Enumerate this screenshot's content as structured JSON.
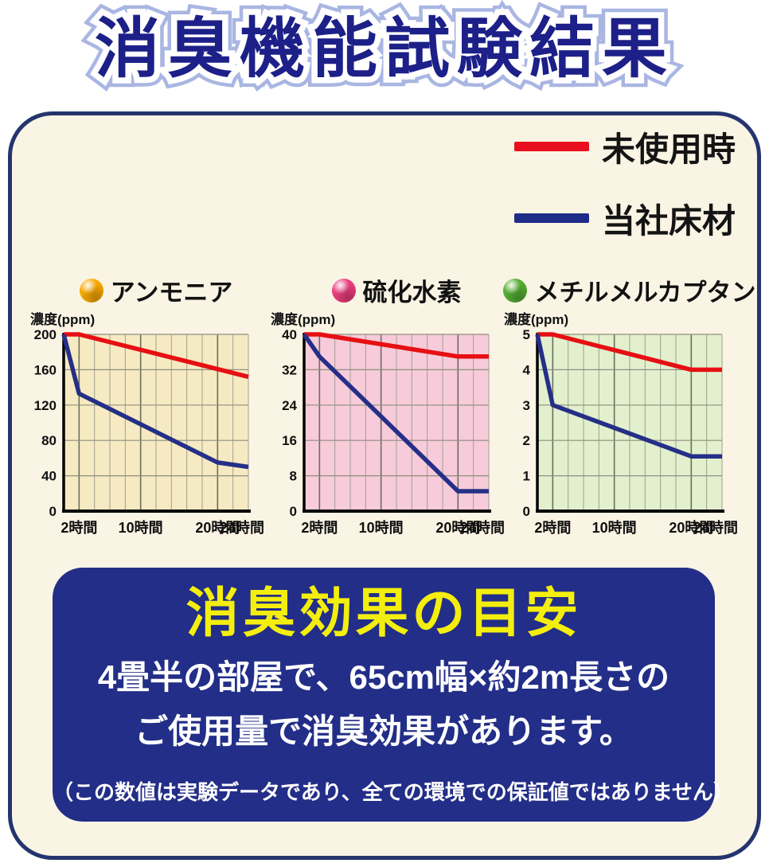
{
  "page": {
    "title": "消臭機能試験結果"
  },
  "legend": {
    "items": [
      {
        "label": "未使用時",
        "color": "#e8101e"
      },
      {
        "label": "当社床材",
        "color": "#1f2c87"
      }
    ]
  },
  "chart_data": [
    {
      "type": "line",
      "title": "アンモニア",
      "dot_color": "#f7a800",
      "bg_color": "#f6eac2",
      "ylabel": "濃度(ppm)",
      "ylim": [
        0,
        200
      ],
      "yticks": [
        0,
        40,
        80,
        120,
        160,
        200
      ],
      "xlim": [
        0,
        24
      ],
      "grid_step_hours": 2,
      "major_hours": [
        2,
        10,
        20
      ],
      "xticks": [
        {
          "h": 2,
          "label": "2時間"
        },
        {
          "h": 10,
          "label": "10時間"
        },
        {
          "h": 20,
          "label": "20時間"
        },
        {
          "h": 24,
          "label": "24時間"
        }
      ],
      "series": [
        {
          "name": "未使用時",
          "color": "#e60f13",
          "points": [
            [
              0,
              200
            ],
            [
              2,
              200
            ],
            [
              24,
              152
            ]
          ]
        },
        {
          "name": "当社床材",
          "color": "#252f87",
          "points": [
            [
              0,
              200
            ],
            [
              2,
              133
            ],
            [
              20,
              55
            ],
            [
              24,
              50
            ]
          ]
        }
      ]
    },
    {
      "type": "line",
      "title": "硫化水素",
      "dot_color": "#ec3d7d",
      "bg_color": "#f7cbda",
      "ylabel": "濃度(ppm)",
      "ylim": [
        0,
        40
      ],
      "yticks": [
        0,
        8,
        16,
        24,
        32,
        40
      ],
      "xlim": [
        0,
        24
      ],
      "grid_step_hours": 2,
      "major_hours": [
        2,
        10,
        20
      ],
      "xticks": [
        {
          "h": 2,
          "label": "2時間"
        },
        {
          "h": 10,
          "label": "10時間"
        },
        {
          "h": 20,
          "label": "20時間"
        },
        {
          "h": 24,
          "label": "24時間"
        }
      ],
      "series": [
        {
          "name": "未使用時",
          "color": "#e60f13",
          "points": [
            [
              0,
              40
            ],
            [
              2,
              40
            ],
            [
              20,
              35
            ],
            [
              24,
              35
            ]
          ]
        },
        {
          "name": "当社床材",
          "color": "#252f87",
          "points": [
            [
              0,
              40
            ],
            [
              2,
              35
            ],
            [
              20,
              4.5
            ],
            [
              24,
              4.5
            ]
          ]
        }
      ]
    },
    {
      "type": "line",
      "title": "メチルメルカプタン",
      "dot_color": "#54ae33",
      "bg_color": "#e2f0cd",
      "ylabel": "濃度(ppm)",
      "ylim": [
        0,
        5
      ],
      "yticks": [
        0,
        1,
        2,
        3,
        4,
        5
      ],
      "xlim": [
        0,
        24
      ],
      "grid_step_hours": 2,
      "major_hours": [
        2,
        10,
        20
      ],
      "xticks": [
        {
          "h": 2,
          "label": "2時間"
        },
        {
          "h": 10,
          "label": "10時間"
        },
        {
          "h": 20,
          "label": "20時間"
        },
        {
          "h": 24,
          "label": "24時間"
        }
      ],
      "series": [
        {
          "name": "未使用時",
          "color": "#e60f13",
          "points": [
            [
              0,
              5
            ],
            [
              2,
              5
            ],
            [
              20,
              4
            ],
            [
              24,
              4
            ]
          ]
        },
        {
          "name": "当社床材",
          "color": "#252f87",
          "points": [
            [
              0,
              5
            ],
            [
              2,
              3
            ],
            [
              20,
              1.55
            ],
            [
              24,
              1.55
            ]
          ]
        }
      ]
    }
  ],
  "callout": {
    "title": "消臭効果の目安",
    "line1": "4畳半の部屋で、65cm幅×約2m長さの",
    "line2": "ご使用量で消臭効果があります。",
    "note": "（この数値は実験データであり、全ての環境での保証値ではありません）"
  }
}
